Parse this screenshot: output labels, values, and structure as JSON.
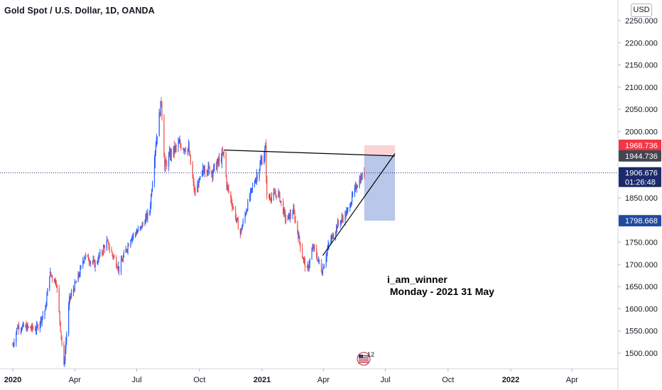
{
  "header": {
    "title": "Gold Spot / U.S. Dollar, 1D, OANDA"
  },
  "currency": "USD",
  "annotation": {
    "line1": "i_am_winner",
    "line2": " Monday - 2021 31 May"
  },
  "marker_icon": {
    "name": "us-flag-icon",
    "label": "12"
  },
  "price_labels": [
    {
      "value": "1968.736",
      "color": "#f23645",
      "text_color": "#ffffff"
    },
    {
      "value": "1944.736",
      "color": "#434651",
      "text_color": "#ffffff"
    },
    {
      "value": "1906.676",
      "sub": "01:26:48",
      "color": "#1b2a6b",
      "text_color": "#ffffff"
    },
    {
      "value": "1798.668",
      "color": "#1e4b9e",
      "text_color": "#ffffff"
    }
  ],
  "chart_data": {
    "type": "candlestick",
    "symbol": "Gold Spot / U.S. Dollar",
    "interval": "1D",
    "source": "OANDA",
    "ylim": [
      1460,
      2270
    ],
    "y_ticks": [
      "2250.000",
      "2200.000",
      "2150.000",
      "2100.000",
      "2050.000",
      "2000.000",
      "1950.000",
      "1900.000",
      "1850.000",
      "1800.000",
      "1750.000",
      "1700.000",
      "1650.000",
      "1600.000",
      "1550.000",
      "1500.000"
    ],
    "x_ticks": [
      "2020",
      "Apr",
      "Jul",
      "Oct",
      "2021",
      "Apr",
      "Jul",
      "Oct",
      "2022",
      "Apr"
    ],
    "colors": {
      "up": "#2962ff",
      "down": "#ef5350",
      "line": "#000000",
      "current_price_line": "#1b2a6b"
    },
    "price_path": [
      [
        "2020-01-01",
        1518
      ],
      [
        "2020-01-08",
        1560
      ],
      [
        "2020-01-20",
        1558
      ],
      [
        "2020-02-05",
        1555
      ],
      [
        "2020-02-18",
        1600
      ],
      [
        "2020-02-24",
        1680
      ],
      [
        "2020-03-05",
        1660
      ],
      [
        "2020-03-16",
        1470
      ],
      [
        "2020-03-24",
        1620
      ],
      [
        "2020-04-08",
        1680
      ],
      [
        "2020-04-15",
        1720
      ],
      [
        "2020-05-01",
        1700
      ],
      [
        "2020-05-18",
        1750
      ],
      [
        "2020-06-05",
        1690
      ],
      [
        "2020-06-22",
        1760
      ],
      [
        "2020-07-06",
        1780
      ],
      [
        "2020-07-20",
        1820
      ],
      [
        "2020-07-28",
        1960
      ],
      [
        "2020-08-06",
        2070
      ],
      [
        "2020-08-11",
        1920
      ],
      [
        "2020-08-20",
        1950
      ],
      [
        "2020-09-01",
        1970
      ],
      [
        "2020-09-15",
        1960
      ],
      [
        "2020-09-24",
        1860
      ],
      [
        "2020-10-09",
        1920
      ],
      [
        "2020-10-20",
        1910
      ],
      [
        "2020-11-06",
        1950
      ],
      [
        "2020-11-10",
        1880
      ],
      [
        "2020-11-30",
        1770
      ],
      [
        "2020-12-15",
        1860
      ],
      [
        "2021-01-06",
        1960
      ],
      [
        "2021-01-08",
        1850
      ],
      [
        "2021-01-25",
        1860
      ],
      [
        "2021-02-05",
        1800
      ],
      [
        "2021-02-16",
        1820
      ],
      [
        "2021-03-01",
        1720
      ],
      [
        "2021-03-08",
        1685
      ],
      [
        "2021-03-17",
        1740
      ],
      [
        "2021-03-30",
        1685
      ],
      [
        "2021-04-09",
        1745
      ],
      [
        "2021-04-22",
        1790
      ],
      [
        "2021-05-05",
        1815
      ],
      [
        "2021-05-20",
        1880
      ],
      [
        "2021-05-31",
        1906.676
      ]
    ],
    "trend_lines": [
      {
        "from": [
          "2020-11-06",
          1958
        ],
        "to": [
          "2021-07-15",
          1944.736
        ]
      },
      {
        "from": [
          "2021-03-31",
          1720
        ],
        "to": [
          "2021-07-15",
          1950
        ]
      }
    ],
    "position_tool": {
      "from": "2021-05-31",
      "to": "2021-07-15",
      "entry": 1944.736,
      "stop": 1968.736,
      "target": 1798.668
    },
    "current_price": 1906.676,
    "countdown": "01:26:48"
  }
}
